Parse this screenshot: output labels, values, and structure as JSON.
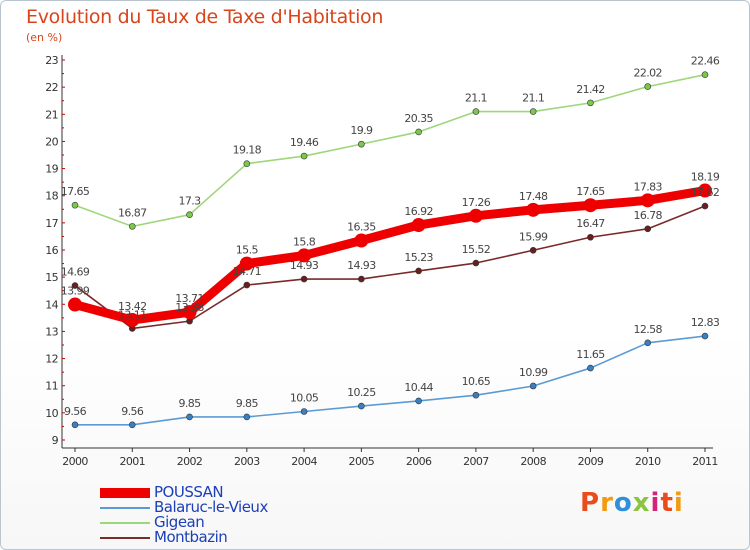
{
  "title": "Evolution du Taux de Taxe d'Habitation",
  "subtitle": "(en %)",
  "logo": {
    "text": "Proxiti",
    "colors": [
      "#e94b1b",
      "#f29a12",
      "#2f8fd8",
      "#8bc53f",
      "#d4237a"
    ]
  },
  "chart_data": {
    "type": "line",
    "title": "Evolution du Taux de Taxe d'Habitation",
    "ylabel": "(en %)",
    "xlabel": "",
    "categories": [
      "2000",
      "2001",
      "2002",
      "2003",
      "2004",
      "2005",
      "2006",
      "2007",
      "2008",
      "2009",
      "2010",
      "2011"
    ],
    "ylim": [
      9,
      23
    ],
    "yticks": [
      "9",
      "10",
      "11",
      "12",
      "13",
      "14",
      "15",
      "16",
      "17",
      "18",
      "19",
      "20",
      "21",
      "22",
      "23"
    ],
    "grid": false,
    "legend_position": "bottom-left",
    "series": [
      {
        "name": "POUSSAN",
        "color": "#ee0000",
        "marker": "#ee0000",
        "values": [
          13.99,
          13.42,
          13.71,
          15.5,
          15.8,
          16.35,
          16.92,
          17.26,
          17.48,
          17.65,
          17.83,
          18.19
        ],
        "labels": [
          "13.99",
          "13.42",
          "13.71",
          "15.5",
          "15.8",
          "16.35",
          "16.92",
          "17.26",
          "17.48",
          "17.65",
          "17.83",
          "18.19"
        ],
        "thick": true
      },
      {
        "name": "Balaruc-le-Vieux",
        "color": "#5b9bd5",
        "marker": "#3a7fc0",
        "values": [
          9.56,
          9.56,
          9.85,
          9.85,
          10.05,
          10.25,
          10.44,
          10.65,
          10.99,
          11.65,
          12.58,
          12.83
        ],
        "labels": [
          "9.56",
          "9.56",
          "9.85",
          "9.85",
          "10.05",
          "10.25",
          "10.44",
          "10.65",
          "10.99",
          "11.65",
          "12.58",
          "12.83"
        ],
        "thick": false
      },
      {
        "name": "Gigean",
        "color": "#9ed67a",
        "marker": "#7cc84a",
        "values": [
          17.65,
          16.87,
          17.3,
          19.18,
          19.46,
          19.9,
          20.35,
          21.1,
          21.1,
          21.42,
          22.02,
          22.46
        ],
        "labels": [
          "17.65",
          "16.87",
          "17.3",
          "19.18",
          "19.46",
          "19.9",
          "20.35",
          "21.1",
          "21.1",
          "21.42",
          "22.02",
          "22.46"
        ],
        "thick": false
      },
      {
        "name": "Montbazin",
        "color": "#7a2a2a",
        "marker": "#6a1f1f",
        "values": [
          14.69,
          13.11,
          13.38,
          14.71,
          14.93,
          14.93,
          15.23,
          15.52,
          15.99,
          16.47,
          16.78,
          17.62
        ],
        "labels": [
          "14.69",
          "13.11",
          "13.38",
          "14.71",
          "14.93",
          "14.93",
          "15.23",
          "15.52",
          "15.99",
          "16.47",
          "16.78",
          "17.62"
        ],
        "thick": false
      }
    ]
  }
}
